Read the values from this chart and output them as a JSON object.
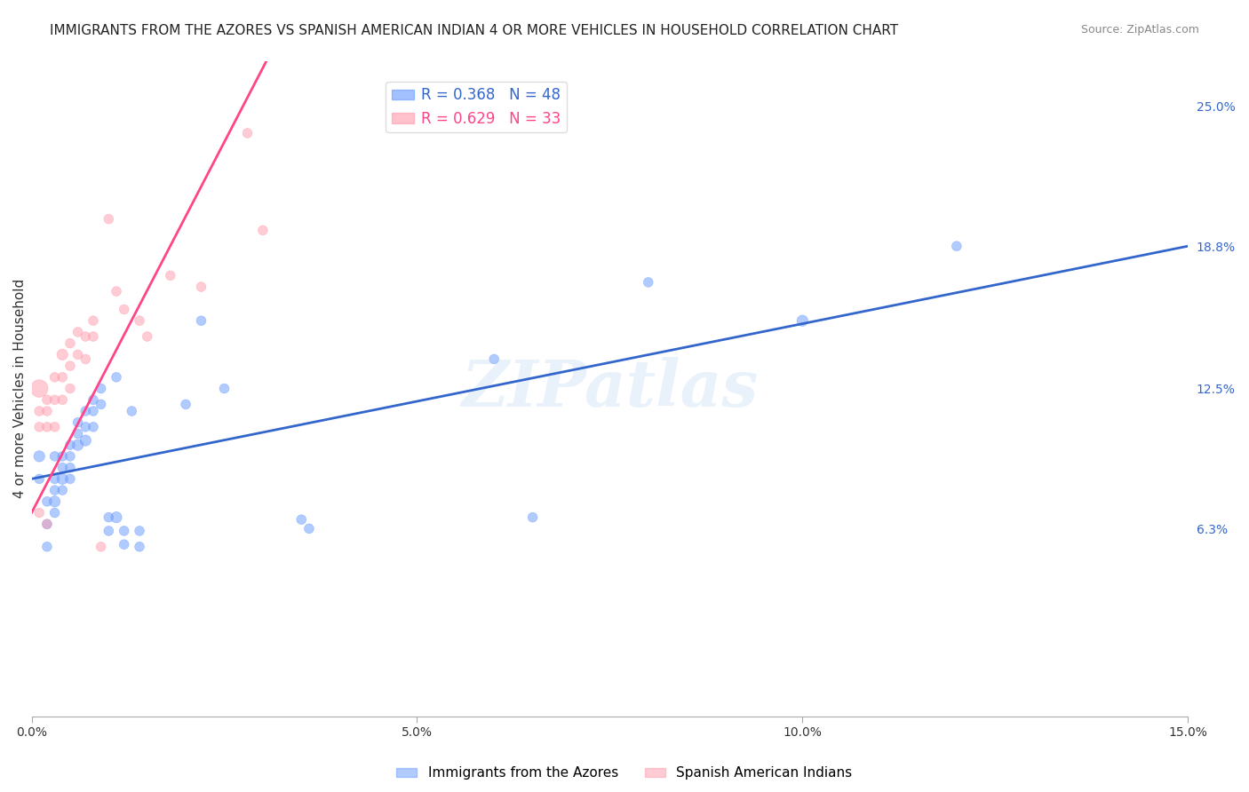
{
  "title": "IMMIGRANTS FROM THE AZORES VS SPANISH AMERICAN INDIAN 4 OR MORE VEHICLES IN HOUSEHOLD CORRELATION CHART",
  "source": "Source: ZipAtlas.com",
  "xlabel_ticks": [
    "0.0%",
    "15.0%"
  ],
  "ylabel_ticks": [
    "6.3%",
    "12.5%",
    "18.8%",
    "25.0%"
  ],
  "ylabel_label": "4 or more Vehicles in Household",
  "xmin": 0.0,
  "xmax": 0.15,
  "ymin": -0.02,
  "ymax": 0.27,
  "legend1_R": "0.368",
  "legend1_N": "48",
  "legend2_R": "0.629",
  "legend2_N": "33",
  "blue_color": "#6699ff",
  "pink_color": "#ff99aa",
  "blue_line_color": "#3366cc",
  "pink_line_color": "#ff4488",
  "watermark": "ZIPatlas",
  "legend_label1": "Immigrants from the Azores",
  "legend_label2": "Spanish American Indians",
  "blue_scatter_x": [
    0.001,
    0.001,
    0.002,
    0.002,
    0.002,
    0.003,
    0.003,
    0.003,
    0.003,
    0.003,
    0.004,
    0.004,
    0.004,
    0.004,
    0.005,
    0.005,
    0.005,
    0.005,
    0.006,
    0.006,
    0.006,
    0.007,
    0.007,
    0.007,
    0.008,
    0.008,
    0.008,
    0.009,
    0.009,
    0.01,
    0.01,
    0.011,
    0.011,
    0.012,
    0.012,
    0.013,
    0.014,
    0.014,
    0.02,
    0.022,
    0.025,
    0.035,
    0.036,
    0.06,
    0.065,
    0.08,
    0.1,
    0.12
  ],
  "blue_scatter_y": [
    0.095,
    0.085,
    0.075,
    0.065,
    0.055,
    0.095,
    0.085,
    0.08,
    0.075,
    0.07,
    0.095,
    0.09,
    0.085,
    0.08,
    0.1,
    0.095,
    0.09,
    0.085,
    0.11,
    0.105,
    0.1,
    0.115,
    0.108,
    0.102,
    0.12,
    0.115,
    0.108,
    0.125,
    0.118,
    0.068,
    0.062,
    0.13,
    0.068,
    0.062,
    0.056,
    0.115,
    0.062,
    0.055,
    0.118,
    0.155,
    0.125,
    0.067,
    0.063,
    0.138,
    0.068,
    0.172,
    0.155,
    0.188
  ],
  "pink_scatter_x": [
    0.001,
    0.001,
    0.001,
    0.001,
    0.002,
    0.002,
    0.002,
    0.002,
    0.003,
    0.003,
    0.003,
    0.004,
    0.004,
    0.004,
    0.005,
    0.005,
    0.005,
    0.006,
    0.006,
    0.007,
    0.007,
    0.008,
    0.008,
    0.009,
    0.01,
    0.011,
    0.012,
    0.014,
    0.015,
    0.018,
    0.022,
    0.028,
    0.03
  ],
  "pink_scatter_y": [
    0.125,
    0.115,
    0.108,
    0.07,
    0.12,
    0.115,
    0.108,
    0.065,
    0.13,
    0.12,
    0.108,
    0.14,
    0.13,
    0.12,
    0.145,
    0.135,
    0.125,
    0.15,
    0.14,
    0.148,
    0.138,
    0.155,
    0.148,
    0.055,
    0.2,
    0.168,
    0.16,
    0.155,
    0.148,
    0.175,
    0.17,
    0.238,
    0.195
  ],
  "blue_sizes": [
    80,
    60,
    60,
    60,
    60,
    60,
    60,
    60,
    80,
    60,
    60,
    60,
    80,
    60,
    60,
    60,
    60,
    60,
    60,
    60,
    80,
    60,
    60,
    80,
    60,
    60,
    60,
    60,
    60,
    60,
    60,
    60,
    80,
    60,
    60,
    60,
    60,
    60,
    60,
    60,
    60,
    60,
    60,
    60,
    60,
    60,
    80,
    60
  ],
  "pink_sizes": [
    200,
    60,
    60,
    60,
    60,
    60,
    60,
    60,
    60,
    60,
    60,
    80,
    60,
    60,
    60,
    60,
    60,
    60,
    60,
    60,
    60,
    60,
    60,
    60,
    60,
    60,
    60,
    60,
    60,
    60,
    60,
    60,
    60
  ]
}
